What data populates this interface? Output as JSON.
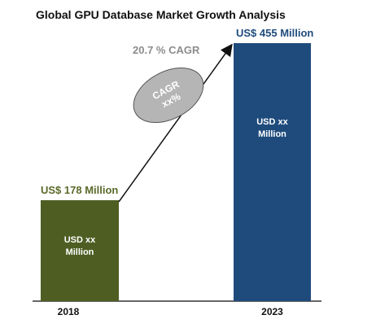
{
  "chart_data": {
    "type": "bar",
    "title": "Global GPU Database Market Growth Analysis",
    "categories": [
      "2018",
      "2023"
    ],
    "values": [
      178,
      455
    ],
    "value_labels": [
      "US$ 178 Million",
      "US$ 455 Million"
    ],
    "bar_inner_labels": [
      [
        "USD  xx",
        "Million"
      ],
      [
        "USD  xx",
        "Million"
      ]
    ],
    "cagr_label": "20.7 % CAGR",
    "bubble_lines": [
      "CAGR",
      "xx%"
    ],
    "ylim": [
      0,
      455
    ],
    "colors": {
      "bar_2018": "#4e5e23",
      "bar_2023": "#1f4b7c",
      "label_2018": "#5a6a2a",
      "label_2023": "#1f4b7c",
      "cagr_text": "#8c8c8c",
      "bubble_fill": "#b5b5b5",
      "bubble_text": "#ffffff",
      "axis": "#333333"
    }
  }
}
